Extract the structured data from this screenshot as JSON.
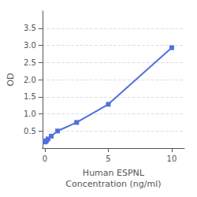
{
  "chart_data": {
    "type": "line",
    "marker": "square",
    "xlabel": "Human ESPNL\nConcentration (ng/ml)",
    "ylabel": "OD",
    "x": [
      0,
      0.0625,
      0.125,
      0.25,
      0.5,
      1,
      2.5,
      5,
      10
    ],
    "values": [
      0.18,
      0.2,
      0.22,
      0.27,
      0.35,
      0.5,
      0.75,
      1.28,
      2.93
    ],
    "xlim": [
      -0.2,
      11
    ],
    "xticks": [
      0,
      5,
      10
    ],
    "ylim": [
      0.0,
      4.0
    ],
    "yticks": [
      0.5,
      {
        "value": 1.0,
        "label": "1.0"
      },
      1.5,
      {
        "value": 2.0,
        "label": "2.0"
      },
      2.5,
      {
        "value": 3.0,
        "label": "3.0"
      },
      3.5
    ],
    "grid": "y"
  }
}
